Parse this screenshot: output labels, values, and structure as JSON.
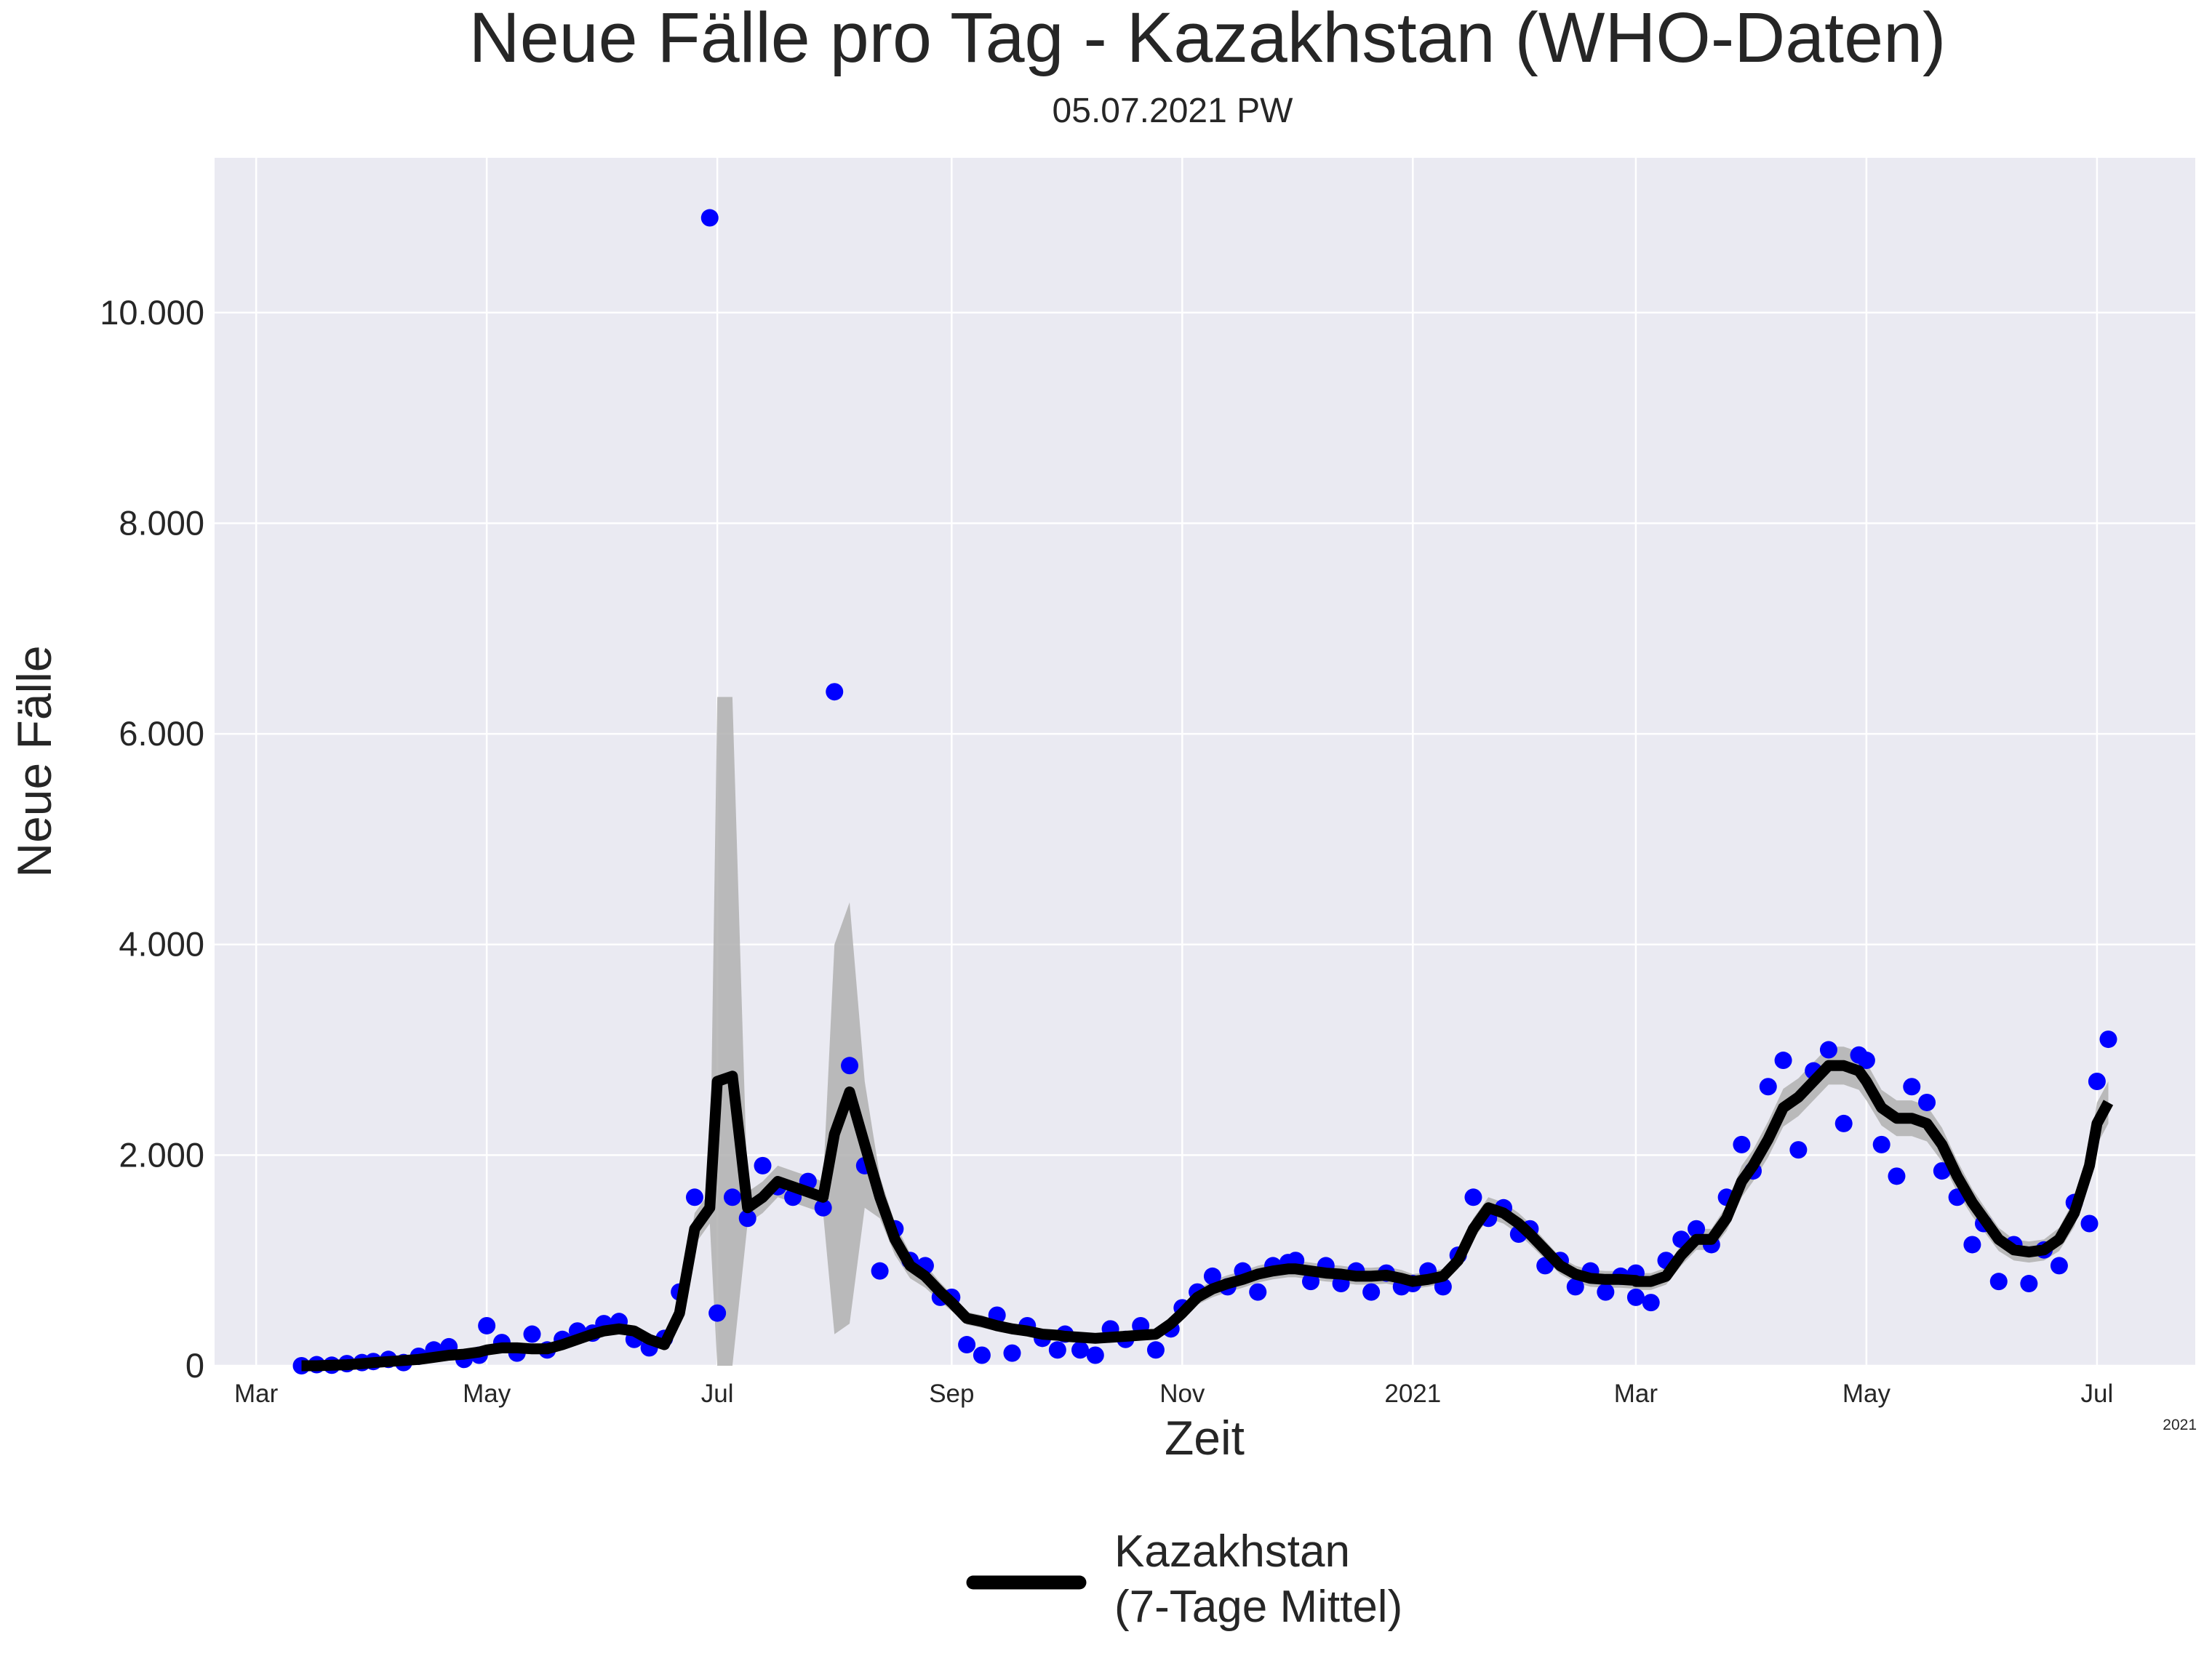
{
  "chart_data": {
    "type": "line",
    "title": "Neue Fälle pro Tag - Kazakhstan (WHO-Daten)",
    "subtitle": "05.07.2021 PW",
    "xlabel": "Zeit",
    "ylabel": "Neue Fälle",
    "x_offset_label": "2021",
    "grid": true,
    "legend": "below",
    "background": "#eaeaf2",
    "xlim": [
      "2020-02-19",
      "2021-07-27"
    ],
    "xticks": [
      {
        "value": "2020-03-01",
        "label": "Mar"
      },
      {
        "value": "2020-05-01",
        "label": "May"
      },
      {
        "value": "2020-07-01",
        "label": "Jul"
      },
      {
        "value": "2020-09-01",
        "label": "Sep"
      },
      {
        "value": "2020-11-01",
        "label": "Nov"
      },
      {
        "value": "2021-01-01",
        "label": "2021"
      },
      {
        "value": "2021-03-01",
        "label": "Mar"
      },
      {
        "value": "2021-05-01",
        "label": "May"
      },
      {
        "value": "2021-07-01",
        "label": "Jul"
      }
    ],
    "ylim": [
      0,
      11470
    ],
    "yticks": [
      0,
      {
        "value": 2000,
        "label": "2.000"
      },
      {
        "value": 4000,
        "label": "4.000"
      },
      {
        "value": 6000,
        "label": "6.000"
      },
      {
        "value": 8000,
        "label": "8.000"
      },
      {
        "value": 10000,
        "label": "10.000"
      }
    ],
    "x": [
      "2020-03-13",
      "2020-03-17",
      "2020-03-21",
      "2020-03-25",
      "2020-03-29",
      "2020-04-01",
      "2020-04-05",
      "2020-04-09",
      "2020-04-13",
      "2020-04-17",
      "2020-04-21",
      "2020-04-25",
      "2020-04-29",
      "2020-05-01",
      "2020-05-05",
      "2020-05-09",
      "2020-05-13",
      "2020-05-17",
      "2020-05-21",
      "2020-05-25",
      "2020-05-29",
      "2020-06-01",
      "2020-06-05",
      "2020-06-09",
      "2020-06-13",
      "2020-06-17",
      "2020-06-21",
      "2020-06-25",
      "2020-06-29",
      "2020-07-01",
      "2020-07-05",
      "2020-07-09",
      "2020-07-13",
      "2020-07-17",
      "2020-07-21",
      "2020-07-25",
      "2020-07-29",
      "2020-08-01",
      "2020-08-05",
      "2020-08-09",
      "2020-08-13",
      "2020-08-17",
      "2020-08-21",
      "2020-08-25",
      "2020-08-29",
      "2020-09-01",
      "2020-09-05",
      "2020-09-09",
      "2020-09-13",
      "2020-09-17",
      "2020-09-21",
      "2020-09-25",
      "2020-09-29",
      "2020-10-01",
      "2020-10-05",
      "2020-10-09",
      "2020-10-13",
      "2020-10-17",
      "2020-10-21",
      "2020-10-25",
      "2020-10-29",
      "2020-11-01",
      "2020-11-05",
      "2020-11-09",
      "2020-11-13",
      "2020-11-17",
      "2020-11-21",
      "2020-11-25",
      "2020-11-29",
      "2020-12-01",
      "2020-12-05",
      "2020-12-09",
      "2020-12-13",
      "2020-12-17",
      "2020-12-21",
      "2020-12-25",
      "2020-12-29",
      "2021-01-01",
      "2021-01-05",
      "2021-01-09",
      "2021-01-13",
      "2021-01-17",
      "2021-01-21",
      "2021-01-25",
      "2021-01-29",
      "2021-02-01",
      "2021-02-05",
      "2021-02-09",
      "2021-02-13",
      "2021-02-17",
      "2021-02-21",
      "2021-02-25",
      "2021-02-29",
      "2021-03-01",
      "2021-03-05",
      "2021-03-09",
      "2021-03-13",
      "2021-03-17",
      "2021-03-21",
      "2021-03-25",
      "2021-03-29",
      "2021-04-01",
      "2021-04-05",
      "2021-04-09",
      "2021-04-13",
      "2021-04-17",
      "2021-04-21",
      "2021-04-25",
      "2021-04-29",
      "2021-05-01",
      "2021-05-05",
      "2021-05-09",
      "2021-05-13",
      "2021-05-17",
      "2021-05-21",
      "2021-05-25",
      "2021-05-29",
      "2021-06-01",
      "2021-06-05",
      "2021-06-09",
      "2021-06-13",
      "2021-06-17",
      "2021-06-21",
      "2021-06-25",
      "2021-06-29",
      "2021-07-01",
      "2021-07-04"
    ],
    "series": [
      {
        "type": "scatter",
        "color": "#0000ff",
        "values": [
          0,
          10,
          5,
          20,
          30,
          40,
          60,
          30,
          90,
          150,
          180,
          60,
          100,
          380,
          220,
          120,
          300,
          150,
          250,
          330,
          310,
          400,
          420,
          250,
          170,
          260,
          700,
          1600,
          10900,
          500,
          1600,
          1400,
          1900,
          1700,
          1600,
          1750,
          1500,
          6400,
          2850,
          1900,
          900,
          1300,
          1000,
          950,
          650,
          650,
          200,
          100,
          480,
          120,
          380,
          260,
          150,
          300,
          150,
          100,
          350,
          250,
          380,
          150,
          350,
          550,
          700,
          850,
          750,
          900,
          700,
          950,
          980,
          1000,
          800,
          950,
          780,
          900,
          700,
          880,
          750,
          780,
          900,
          750,
          1050,
          1600,
          1400,
          1500,
          1250,
          1300,
          950,
          1000,
          750,
          900,
          700,
          850,
          650,
          880,
          600,
          1000,
          1200,
          1300,
          1150,
          1600,
          2100,
          1850,
          2650,
          2900,
          2050,
          2800,
          3000,
          2300,
          2950,
          2900,
          2100,
          1800,
          2650,
          2500,
          1850,
          1600,
          1150,
          1350,
          800,
          1150,
          780,
          1100,
          950,
          1550,
          1350,
          2700,
          3100
        ]
      },
      {
        "name": "Kazakhstan\n(7-Tage Mittel)",
        "color": "#000000",
        "values": [
          0,
          0,
          5,
          10,
          20,
          30,
          40,
          50,
          60,
          80,
          100,
          110,
          130,
          150,
          170,
          170,
          160,
          160,
          200,
          250,
          300,
          330,
          350,
          330,
          250,
          200,
          500,
          1300,
          1500,
          2700,
          2750,
          1500,
          1600,
          1750,
          1700,
          1650,
          1600,
          2200,
          2600,
          2100,
          1600,
          1200,
          950,
          850,
          700,
          600,
          450,
          420,
          380,
          350,
          330,
          300,
          290,
          280,
          270,
          260,
          270,
          280,
          290,
          300,
          400,
          500,
          650,
          730,
          780,
          820,
          870,
          900,
          920,
          920,
          900,
          880,
          870,
          850,
          850,
          860,
          830,
          800,
          820,
          850,
          1000,
          1300,
          1500,
          1450,
          1350,
          1250,
          1100,
          950,
          870,
          830,
          820,
          820,
          810,
          800,
          800,
          850,
          1050,
          1200,
          1200,
          1400,
          1750,
          1900,
          2150,
          2450,
          2550,
          2700,
          2850,
          2850,
          2800,
          2700,
          2450,
          2350,
          2350,
          2300,
          2100,
          1800,
          1550,
          1400,
          1200,
          1100,
          1080,
          1100,
          1200,
          1450,
          1900,
          2300,
          2500
        ]
      }
    ],
    "band": {
      "color": "#b0b0b0",
      "lower": [
        0,
        0,
        0,
        5,
        10,
        20,
        30,
        40,
        45,
        60,
        80,
        90,
        110,
        125,
        145,
        145,
        135,
        135,
        170,
        215,
        260,
        290,
        305,
        285,
        215,
        170,
        420,
        1150,
        1350,
        0,
        0,
        1350,
        1450,
        1600,
        1550,
        1500,
        1450,
        300,
        400,
        1500,
        1400,
        1050,
        830,
        740,
        610,
        520,
        390,
        360,
        330,
        300,
        285,
        260,
        250,
        240,
        235,
        225,
        235,
        240,
        250,
        260,
        350,
        440,
        580,
        650,
        700,
        740,
        790,
        820,
        840,
        840,
        820,
        800,
        790,
        770,
        770,
        780,
        750,
        730,
        750,
        780,
        920,
        1200,
        1400,
        1350,
        1250,
        1150,
        1010,
        870,
        790,
        750,
        740,
        740,
        730,
        720,
        720,
        770,
        950,
        1100,
        1100,
        1280,
        1600,
        1750,
        1980,
        2270,
        2370,
        2520,
        2670,
        2670,
        2620,
        2520,
        2280,
        2180,
        2180,
        2130,
        1940,
        1650,
        1420,
        1280,
        1090,
        1000,
        980,
        1000,
        1090,
        1320,
        1740,
        2100,
        2300
      ],
      "upper": [
        5,
        10,
        15,
        25,
        35,
        45,
        55,
        65,
        80,
        100,
        125,
        135,
        150,
        180,
        200,
        200,
        190,
        190,
        235,
        290,
        345,
        375,
        400,
        375,
        290,
        235,
        600,
        1450,
        1650,
        6350,
        6350,
        1650,
        1750,
        1900,
        1850,
        1800,
        1750,
        4000,
        4400,
        2700,
        1800,
        1350,
        1070,
        960,
        790,
        680,
        510,
        480,
        430,
        400,
        375,
        340,
        330,
        320,
        305,
        295,
        305,
        320,
        330,
        340,
        450,
        560,
        720,
        810,
        860,
        900,
        950,
        980,
        1000,
        1000,
        980,
        960,
        950,
        930,
        930,
        940,
        910,
        870,
        890,
        920,
        1080,
        1400,
        1600,
        1550,
        1450,
        1350,
        1190,
        1030,
        950,
        910,
        900,
        900,
        890,
        880,
        880,
        930,
        1150,
        1300,
        1300,
        1520,
        1900,
        2050,
        2320,
        2630,
        2730,
        2880,
        3030,
        3030,
        2980,
        2880,
        2620,
        2520,
        2520,
        2470,
        2260,
        1950,
        1680,
        1520,
        1310,
        1200,
        1180,
        1200,
        1310,
        1580,
        2060,
        2500,
        2700
      ]
    }
  }
}
